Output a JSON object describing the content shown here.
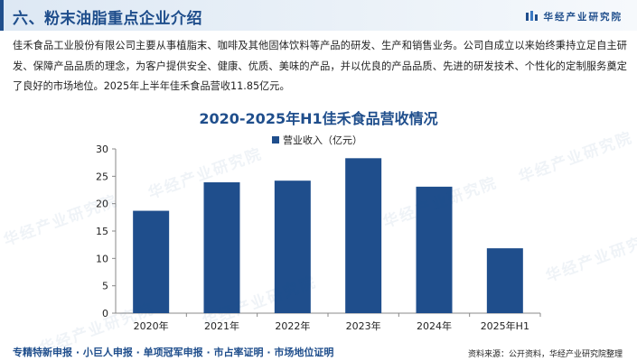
{
  "header": {
    "title": "六、粉末油脂重点企业介绍",
    "logo_text": "华经产业研究院"
  },
  "intro_text": "佳禾食品工业股份有限公司主要从事植脂末、咖啡及其他固体饮料等产品的研发、生产和销售业务。公司自成立以来始终秉持立足自主研发、保障产品品质的理念，为客户提供安全、健康、优质、美味的产品，并以优良的产品品质、先进的研发技术、个性化的定制服务奠定了良好的市场地位。2025年上半年佳禾食品营收11.85亿元。",
  "watermark_text": "华经产业研究院",
  "footer": {
    "services": "专精特新申报 · 小巨人申报 · 单项冠军申报 · 市占率证明 · 市场地位证明",
    "source": "资料来源：公开资料，华经产业研究院整理"
  },
  "colors": {
    "accent": "#1f4e8c",
    "bar": "#1f4e8c"
  },
  "chart_data": {
    "type": "bar",
    "title": "2020-2025年H1佳禾食品营收情况",
    "categories": [
      "2020年",
      "2021年",
      "2022年",
      "2023年",
      "2024年",
      "2025年H1"
    ],
    "series": [
      {
        "name": "营业收入（亿元）",
        "values": [
          18.7,
          23.9,
          24.2,
          28.3,
          23.1,
          11.85
        ]
      }
    ],
    "ylim": [
      0,
      30
    ],
    "yticks": [
      0,
      5,
      10,
      15,
      20,
      25,
      30
    ],
    "legend": "top-center",
    "grid": false
  }
}
